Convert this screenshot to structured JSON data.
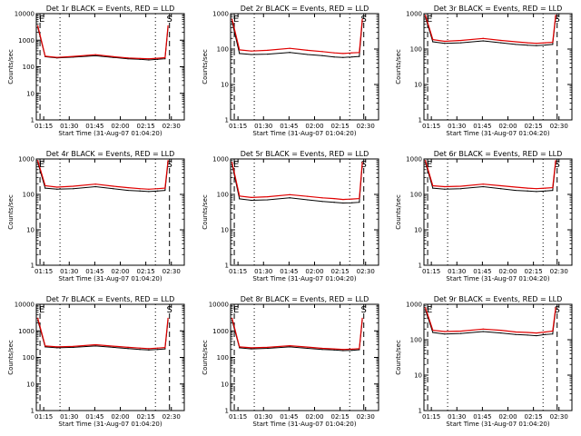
{
  "colors": {
    "events": "#000000",
    "lld": "#e00000",
    "background": "#ffffff"
  },
  "chart_data": [
    {
      "type": "line",
      "title": "Det 1r BLACK = Events, RED = LLD",
      "xlabel": "Start Time (31-Aug-07 01:04:20)",
      "ylabel": "Counts/sec",
      "yscale": "log",
      "ylim": [
        1,
        10000
      ],
      "yticks": [
        "1",
        "10",
        "100",
        "1000",
        "10000"
      ],
      "xticks": [
        "01:15",
        "01:30",
        "01:45",
        "02:00",
        "02:15",
        "02:30"
      ],
      "markers": [
        "E",
        "S"
      ],
      "series": [
        {
          "values": [
            3000,
            240,
            215,
            230,
            260,
            225,
            200,
            190,
            180,
            190,
            200,
            3000
          ]
        },
        {
          "values": [
            3500,
            250,
            225,
            245,
            285,
            240,
            215,
            205,
            200,
            210,
            220,
            3500
          ]
        }
      ]
    },
    {
      "type": "line",
      "title": "Det 2r BLACK = Events, RED = LLD",
      "xlabel": "Start Time (31-Aug-07 01:04:20)",
      "ylabel": "Counts/sec",
      "yscale": "log",
      "ylim": [
        1,
        1000
      ],
      "yticks": [
        "1",
        "10",
        "100",
        "1000"
      ],
      "xticks": [
        "01:15",
        "01:30",
        "01:45",
        "02:00",
        "02:15",
        "02:30"
      ],
      "markers": [
        "E",
        "S"
      ],
      "series": [
        {
          "values": [
            600,
            75,
            70,
            72,
            80,
            70,
            65,
            60,
            58,
            60,
            62,
            600
          ]
        },
        {
          "values": [
            700,
            95,
            88,
            92,
            105,
            92,
            85,
            78,
            75,
            78,
            80,
            700
          ]
        }
      ]
    },
    {
      "type": "line",
      "title": "Det 3r BLACK = Events, RED = LLD",
      "xlabel": "Start Time (31-Aug-07 01:04:20)",
      "ylabel": "Counts/sec",
      "yscale": "log",
      "ylim": [
        1,
        1000
      ],
      "yticks": [
        "1",
        "10",
        "100",
        "1000"
      ],
      "xticks": [
        "01:15",
        "01:30",
        "01:45",
        "02:00",
        "02:15",
        "02:30"
      ],
      "markers": [
        "E",
        "S"
      ],
      "series": [
        {
          "values": [
            800,
            160,
            145,
            150,
            170,
            150,
            135,
            128,
            125,
            130,
            135,
            800
          ]
        },
        {
          "values": [
            900,
            185,
            165,
            175,
            200,
            175,
            160,
            150,
            145,
            150,
            155,
            900
          ]
        }
      ]
    },
    {
      "type": "line",
      "title": "Det 4r BLACK = Events, RED = LLD",
      "xlabel": "Start Time (31-Aug-07 01:04:20)",
      "ylabel": "Counts/sec",
      "yscale": "log",
      "ylim": [
        1,
        1000
      ],
      "yticks": [
        "1",
        "10",
        "100",
        "1000"
      ],
      "xticks": [
        "01:15",
        "01:30",
        "01:45",
        "02:00",
        "02:15",
        "02:30"
      ],
      "markers": [
        "E",
        "S"
      ],
      "series": [
        {
          "values": [
            800,
            150,
            140,
            145,
            165,
            145,
            130,
            125,
            120,
            125,
            130,
            800
          ]
        },
        {
          "values": [
            900,
            175,
            160,
            170,
            195,
            170,
            155,
            145,
            140,
            145,
            150,
            900
          ]
        }
      ]
    },
    {
      "type": "line",
      "title": "Det 5r BLACK = Events, RED = LLD",
      "xlabel": "Start Time (31-Aug-07 01:04:20)",
      "ylabel": "Counts/sec",
      "yscale": "log",
      "ylim": [
        1,
        1000
      ],
      "yticks": [
        "1",
        "10",
        "100",
        "1000"
      ],
      "xticks": [
        "01:15",
        "01:30",
        "01:45",
        "02:00",
        "02:15",
        "02:30"
      ],
      "markers": [
        "E",
        "S"
      ],
      "series": [
        {
          "values": [
            700,
            75,
            68,
            70,
            80,
            70,
            63,
            60,
            57,
            58,
            60,
            700
          ]
        },
        {
          "values": [
            800,
            90,
            82,
            86,
            98,
            88,
            80,
            76,
            72,
            74,
            76,
            800
          ]
        }
      ]
    },
    {
      "type": "line",
      "title": "Det 6r BLACK = Events, RED = LLD",
      "xlabel": "Start Time (31-Aug-07 01:04:20)",
      "ylabel": "Counts/sec",
      "yscale": "log",
      "ylim": [
        1,
        1000
      ],
      "yticks": [
        "1",
        "10",
        "100",
        "1000"
      ],
      "xticks": [
        "01:15",
        "01:30",
        "01:45",
        "02:00",
        "02:15",
        "02:30"
      ],
      "markers": [
        "E",
        "S"
      ],
      "series": [
        {
          "values": [
            800,
            150,
            140,
            145,
            165,
            145,
            130,
            125,
            120,
            125,
            130,
            800
          ]
        },
        {
          "values": [
            900,
            175,
            165,
            170,
            195,
            175,
            160,
            150,
            145,
            150,
            155,
            900
          ]
        }
      ]
    },
    {
      "type": "line",
      "title": "Det 7r BLACK = Events, RED = LLD",
      "xlabel": "Start Time (31-Aug-07 01:04:20)",
      "ylabel": "Counts/sec",
      "yscale": "log",
      "ylim": [
        1,
        10000
      ],
      "yticks": [
        "1",
        "10",
        "100",
        "1000",
        "10000"
      ],
      "xticks": [
        "01:15",
        "01:30",
        "01:45",
        "02:00",
        "02:15",
        "02:30"
      ],
      "markers": [
        "E",
        "S"
      ],
      "series": [
        {
          "values": [
            2500,
            250,
            230,
            240,
            270,
            240,
            215,
            200,
            190,
            200,
            210,
            2500
          ]
        },
        {
          "values": [
            3000,
            270,
            250,
            260,
            300,
            265,
            240,
            225,
            215,
            225,
            235,
            3000
          ]
        }
      ]
    },
    {
      "type": "line",
      "title": "Det 8r BLACK = Events, RED = LLD",
      "xlabel": "Start Time (31-Aug-07 01:04:20)",
      "ylabel": "Counts/sec",
      "yscale": "log",
      "ylim": [
        1,
        10000
      ],
      "yticks": [
        "1",
        "10",
        "100",
        "1000",
        "10000"
      ],
      "xticks": [
        "01:15",
        "01:30",
        "01:45",
        "02:00",
        "02:15",
        "02:30"
      ],
      "markers": [
        "E",
        "S"
      ],
      "series": [
        {
          "values": [
            2500,
            230,
            210,
            220,
            250,
            220,
            200,
            190,
            180,
            185,
            195,
            2500
          ]
        },
        {
          "values": [
            3000,
            250,
            230,
            240,
            275,
            245,
            220,
            210,
            200,
            205,
            215,
            3000
          ]
        }
      ]
    },
    {
      "type": "line",
      "title": "Det 9r BLACK = Events, RED = LLD",
      "xlabel": "Start Time (31-Aug-07 01:04:20)",
      "ylabel": "Counts/sec",
      "yscale": "log",
      "ylim": [
        1,
        1000
      ],
      "yticks": [
        "1",
        "10",
        "100",
        "1000"
      ],
      "xticks": [
        "01:15",
        "01:30",
        "01:45",
        "02:00",
        "02:15",
        "02:30"
      ],
      "markers": [
        "E",
        "S"
      ],
      "series": [
        {
          "values": [
            700,
            160,
            145,
            150,
            170,
            155,
            140,
            135,
            130,
            140,
            145,
            700
          ]
        },
        {
          "values": [
            800,
            185,
            170,
            175,
            200,
            185,
            165,
            160,
            155,
            165,
            175,
            800
          ]
        }
      ]
    }
  ]
}
